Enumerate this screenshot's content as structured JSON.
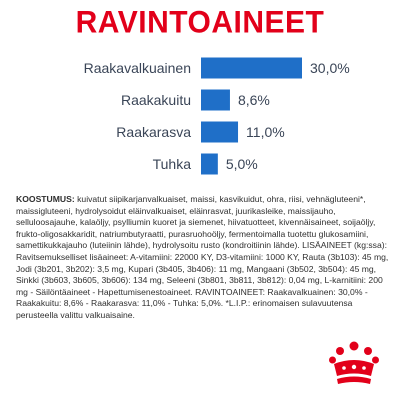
{
  "chart_data": {
    "type": "bar",
    "orientation": "horizontal",
    "title": "RAVINTOAINEET",
    "categories": [
      "Raakavalkuainen",
      "Raakakuitu",
      "Raakarasva",
      "Tuhka"
    ],
    "values": [
      30.0,
      8.6,
      11.0,
      5.0
    ],
    "value_labels": [
      "30,0%",
      "8,6%",
      "11,0%",
      "5,0%"
    ],
    "xlim": [
      0,
      30
    ],
    "grid": false,
    "legend": "none",
    "bar_color": "#1f6fc8"
  },
  "composition": {
    "lead": "KOOSTUMUS:",
    "text": " kuivatut siipikarjanvalkuaiset, maissi, kasvikuidut, ohra, riisi, vehnägluteeni*, maissigluteeni, hydrolysoidut eläinvalkuaiset, eläinrasvat, juurikasleike, maissijauho, selluloosajauhe, kalaöljy, psylliumin kuoret ja siemenet, hiivatuotteet, kivennäisaineet, soijaöljy, frukto-oligosakkaridit, natriumbutyraatti, purasruohoöljy, fermentoimalla tuotettu glukosamiini, samettikukkajauho (luteiinin lähde), hydrolysoitu rusto (kondroitiinin lähde). LISÄAINEET (kg:ssa): Ravitsemukselliset lisäaineet: A-vitamiini: 22000 KY, D3-vitamiini: 1000 KY, Rauta (3b103): 45 mg, Jodi (3b201, 3b202): 3,5 mg, Kupari (3b405, 3b406): 11 mg, Mangaani (3b502, 3b504): 45 mg, Sinkki (3b603, 3b605, 3b606): 134 mg, Seleeni (3b801, 3b811, 3b812): 0,04 mg, L-karnitiini: 200 mg - Säilöntäaineet - Hapettumisenestoaineet. RAVINTOAINEET: Raakavalkuainen: 30,0% - Raakakuitu: 8,6% - Raakarasva: 11,0% - Tuhka: 5,0%. *L.I.P.: erinomaisen sulavuutensa perusteella valittu valkuaisaine."
  },
  "brand": {
    "logo_icon": "crown-logo-icon",
    "color": "#e2001a"
  }
}
